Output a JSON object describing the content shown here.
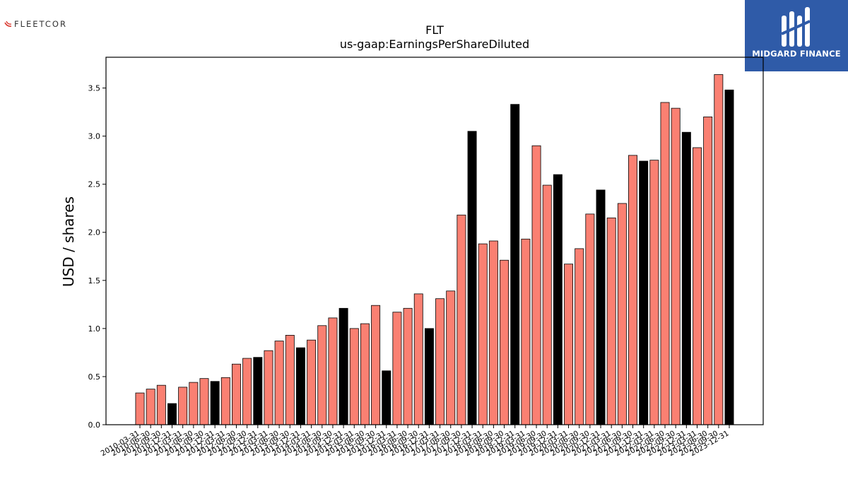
{
  "branding": {
    "left_logo_text": "FLEETCOR",
    "right_logo_text": "MIDGARD FINANCE",
    "right_logo_bg": "#2f5ba8"
  },
  "chart_data": {
    "type": "bar",
    "title": "FLT",
    "subtitle": "us-gaap:EarningsPerShareDiluted",
    "xlabel": "",
    "ylabel": "USD / shares",
    "ylim": [
      0,
      3.82
    ],
    "yticks": [
      "0.0",
      "0.5",
      "1.0",
      "1.5",
      "2.0",
      "2.5",
      "3.0",
      "3.5"
    ],
    "grid": false,
    "legend": "none",
    "colors": {
      "quarterly": "#fa8072",
      "fiscal_year_end": "#000000",
      "edge": "#000000"
    },
    "categories": [
      "2010-03-31",
      "2010-06-30",
      "2010-09-30",
      "2010-12-31",
      "2011-03-31",
      "2011-06-30",
      "2011-09-30",
      "2011-12-31",
      "2012-03-31",
      "2012-06-30",
      "2012-09-30",
      "2012-12-31",
      "2013-03-31",
      "2013-06-30",
      "2013-09-30",
      "2013-12-31",
      "2014-03-31",
      "2014-06-30",
      "2014-09-30",
      "2014-12-31",
      "2015-03-31",
      "2015-06-30",
      "2015-09-30",
      "2015-12-31",
      "2016-03-31",
      "2016-06-30",
      "2016-09-30",
      "2016-12-31",
      "2017-03-31",
      "2017-06-30",
      "2017-09-30",
      "2017-12-31",
      "2018-03-31",
      "2018-06-30",
      "2018-09-30",
      "2018-12-31",
      "2019-03-31",
      "2019-06-30",
      "2019-09-30",
      "2019-12-31",
      "2020-03-31",
      "2020-06-30",
      "2020-09-30",
      "2020-12-31",
      "2021-03-31",
      "2021-06-30",
      "2021-09-30",
      "2021-12-31",
      "2022-03-31",
      "2022-06-30",
      "2022-09-30",
      "2022-12-31",
      "2023-03-31",
      "2023-06-30",
      "2023-09-30",
      "2023-12-31"
    ],
    "values": [
      0.33,
      0.37,
      0.41,
      0.22,
      0.39,
      0.44,
      0.48,
      0.45,
      0.49,
      0.63,
      0.69,
      0.7,
      0.77,
      0.87,
      0.93,
      0.8,
      0.88,
      1.03,
      1.11,
      1.21,
      1.0,
      1.05,
      1.24,
      0.56,
      1.17,
      1.21,
      1.36,
      1.0,
      1.31,
      1.39,
      2.18,
      3.05,
      1.88,
      1.91,
      1.71,
      3.33,
      1.93,
      2.9,
      2.49,
      2.6,
      1.67,
      1.83,
      2.19,
      2.44,
      2.15,
      2.3,
      2.8,
      2.74,
      2.75,
      3.35,
      3.29,
      3.04,
      2.88,
      3.2,
      3.64,
      3.48
    ],
    "highlighted_indices": [
      3,
      7,
      11,
      15,
      19,
      23,
      27,
      31,
      35,
      39,
      43,
      47,
      51,
      55
    ]
  }
}
